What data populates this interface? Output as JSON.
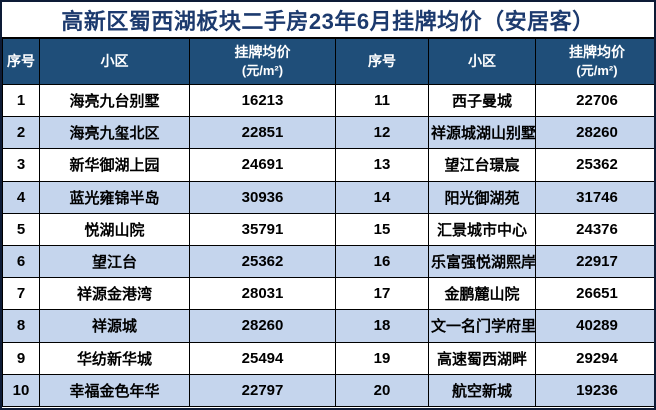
{
  "title": "高新区蜀西湖板块二手房23年6月挂牌均价（安居客）",
  "header": {
    "no": "序号",
    "community": "小区",
    "price_line1": "挂牌均价",
    "price_line2": "(元/m²)"
  },
  "colors": {
    "title_text": "#1c3a6e",
    "header_bg": "#1f4e79",
    "header_text": "#ffffff",
    "row_bg": "#ffffff",
    "row_alt_bg": "#c5d5ed",
    "border": "#000000",
    "outer_border": "#0d1b36"
  },
  "chart_data": {
    "type": "table",
    "title": "高新区蜀西湖板块二手房23年6月挂牌均价（安居客）",
    "columns": [
      "序号",
      "小区",
      "挂牌均价(元/m²)",
      "序号",
      "小区",
      "挂牌均价(元/m²)"
    ],
    "rows": [
      [
        "1",
        "海亮九台别墅",
        "16213",
        "11",
        "西子曼城",
        "22706"
      ],
      [
        "2",
        "海亮九玺北区",
        "22851",
        "12",
        "祥源城湖山别墅",
        "28260"
      ],
      [
        "3",
        "新华御湖上园",
        "24691",
        "13",
        "望江台璟宸",
        "25362"
      ],
      [
        "4",
        "蓝光雍锦半岛",
        "30936",
        "14",
        "阳光御湖苑",
        "31746"
      ],
      [
        "5",
        "悦湖山院",
        "35791",
        "15",
        "汇景城市中心",
        "24376"
      ],
      [
        "6",
        "望江台",
        "25362",
        "16",
        "乐富强悦湖熙岸",
        "22917"
      ],
      [
        "7",
        "祥源金港湾",
        "28031",
        "17",
        "金鹏麓山院",
        "26651"
      ],
      [
        "8",
        "祥源城",
        "28260",
        "18",
        "文一名门学府里",
        "40289"
      ],
      [
        "9",
        "华纺新华城",
        "25494",
        "19",
        "高速蜀西湖畔",
        "29294"
      ],
      [
        "10",
        "幸福金色年华",
        "22797",
        "20",
        "航空新城",
        "19236"
      ]
    ]
  }
}
